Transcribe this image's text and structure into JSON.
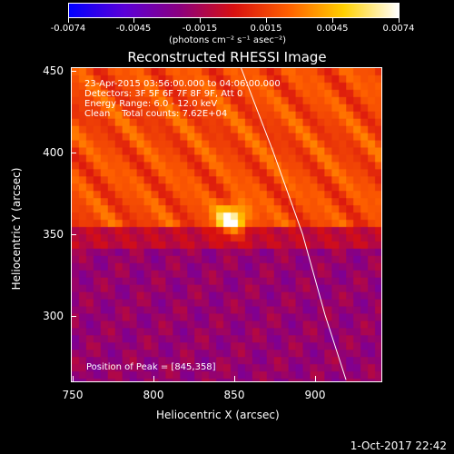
{
  "colorbar": {
    "tick_labels": [
      "-0.0074",
      "-0.0045",
      "-0.0015",
      "0.0015",
      "0.0045",
      "0.0074"
    ],
    "units": "(photons cm⁻² s⁻¹ asec⁻²)",
    "range": [
      -0.0074,
      0.0074
    ],
    "colormap": [
      "#0000ff",
      "#5a00d8",
      "#8a0080",
      "#d81010",
      "#ff6000",
      "#ffd000",
      "#ffffff"
    ]
  },
  "title": "Reconstructed RHESSI Image",
  "info": {
    "time_range": "23-Apr-2015 03:56:00.000 to 04:06:00.000",
    "detectors": "Detectors: 3F 5F 6F 7F 8F 9F, Att 0",
    "energy": "Energy Range: 6.0 - 12.0 keV",
    "clean": "Clean    Total counts: 7.62E+04",
    "peak": "Position of Peak = [845,358]"
  },
  "axes": {
    "x_label": "Heliocentric X (arcsec)",
    "y_label": "Heliocentric Y (arcsec)",
    "x_ticks": [
      "750",
      "800",
      "850",
      "900"
    ],
    "y_ticks": [
      "300",
      "350",
      "400",
      "450"
    ],
    "x_range": [
      745,
      938
    ],
    "y_range": [
      258,
      452
    ]
  },
  "image_data": {
    "peak": [
      845,
      358
    ],
    "limb_curve": [
      [
        915,
        260
      ],
      [
        902,
        300
      ],
      [
        888,
        350
      ],
      [
        870,
        400
      ],
      [
        850,
        452
      ]
    ]
  },
  "footer_date": "1-Oct-2017 22:42"
}
